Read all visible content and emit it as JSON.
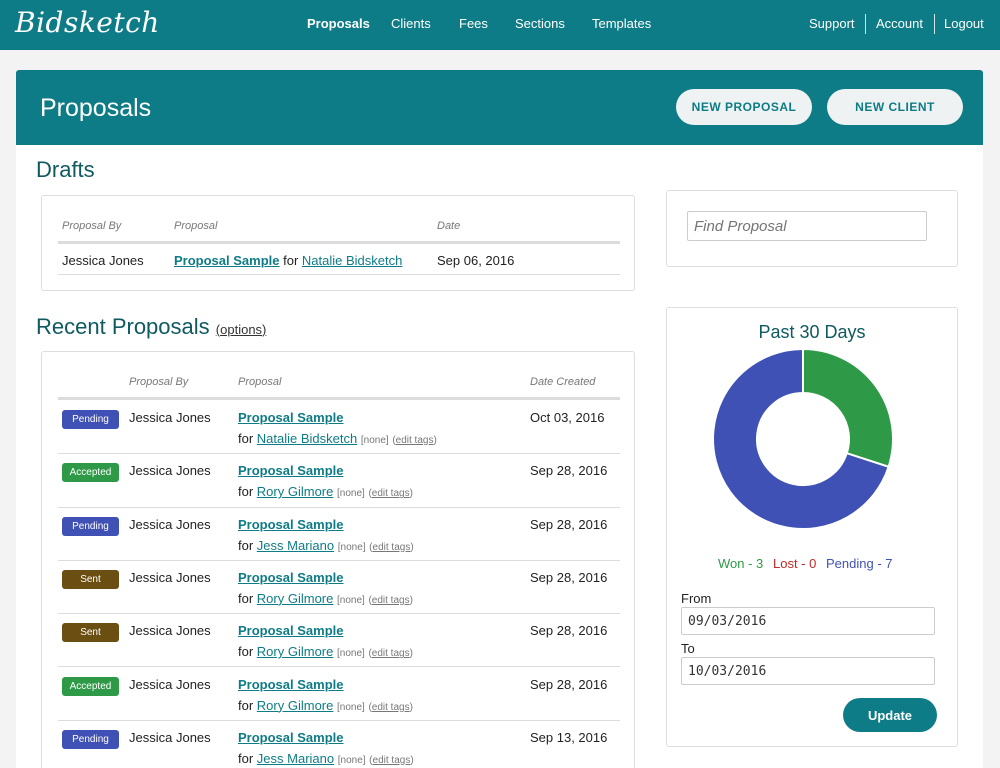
{
  "app": {
    "logo": "Bidsketch"
  },
  "nav": {
    "items": [
      {
        "label": "Proposals",
        "active": true
      },
      {
        "label": "Clients"
      },
      {
        "label": "Fees"
      },
      {
        "label": "Sections"
      },
      {
        "label": "Templates"
      }
    ],
    "right": [
      {
        "label": "Support"
      },
      {
        "label": "Account"
      },
      {
        "label": "Logout"
      }
    ]
  },
  "banner": {
    "title": "Proposals",
    "new_proposal": "NEW PROPOSAL",
    "new_client": "NEW CLIENT"
  },
  "drafts": {
    "title": "Drafts",
    "headers": {
      "by": "Proposal By",
      "proposal": "Proposal",
      "date": "Date"
    },
    "rows": [
      {
        "by": "Jessica Jones",
        "proposal": "Proposal Sample",
        "for_text": "for",
        "client": "Natalie Bidsketch",
        "date": "Sep 06, 2016"
      }
    ]
  },
  "recent": {
    "title": "Recent Proposals",
    "options": "options",
    "headers": {
      "by": "Proposal By",
      "proposal": "Proposal",
      "date": "Date Created"
    },
    "rows": [
      {
        "status": "Pending",
        "by": "Jessica Jones",
        "proposal": "Proposal Sample",
        "for_text": "for",
        "client": "Natalie Bidsketch",
        "tags": "[none]",
        "edit_tags": "edit tags",
        "date": "Oct 03, 2016"
      },
      {
        "status": "Accepted",
        "by": "Jessica Jones",
        "proposal": "Proposal Sample",
        "for_text": "for",
        "client": "Rory Gilmore",
        "tags": "[none]",
        "edit_tags": "edit tags",
        "date": "Sep 28, 2016"
      },
      {
        "status": "Pending",
        "by": "Jessica Jones",
        "proposal": "Proposal Sample",
        "for_text": "for",
        "client": "Jess Mariano",
        "tags": "[none]",
        "edit_tags": "edit tags",
        "date": "Sep 28, 2016"
      },
      {
        "status": "Sent",
        "by": "Jessica Jones",
        "proposal": "Proposal Sample",
        "for_text": "for",
        "client": "Rory Gilmore",
        "tags": "[none]",
        "edit_tags": "edit tags",
        "date": "Sep 28, 2016"
      },
      {
        "status": "Sent",
        "by": "Jessica Jones",
        "proposal": "Proposal Sample",
        "for_text": "for",
        "client": "Rory Gilmore",
        "tags": "[none]",
        "edit_tags": "edit tags",
        "date": "Sep 28, 2016"
      },
      {
        "status": "Accepted",
        "by": "Jessica Jones",
        "proposal": "Proposal Sample",
        "for_text": "for",
        "client": "Rory Gilmore",
        "tags": "[none]",
        "edit_tags": "edit tags",
        "date": "Sep 28, 2016"
      },
      {
        "status": "Pending",
        "by": "Jessica Jones",
        "proposal": "Proposal Sample",
        "for_text": "for",
        "client": "Jess Mariano",
        "tags": "[none]",
        "edit_tags": "edit tags",
        "date": "Sep 13, 2016"
      }
    ]
  },
  "status_colors": {
    "Pending": "#3f51b5",
    "Accepted": "#2e9a47",
    "Sent": "#6b4f12"
  },
  "search": {
    "placeholder": "Find Proposal"
  },
  "stats": {
    "title": "Past 30 Days",
    "won_label": "Won - 3",
    "lost_label": "Lost - 0",
    "pending_label": "Pending - 7",
    "from_label": "From",
    "from_value": "09/03/2016",
    "to_label": "To",
    "to_value": "10/03/2016",
    "update": "Update"
  },
  "chart_data": {
    "type": "pie",
    "title": "Past 30 Days",
    "slices": [
      {
        "label": "Won",
        "value": 3,
        "color": "#2e9a47"
      },
      {
        "label": "Lost",
        "value": 0,
        "color": "#c62828"
      },
      {
        "label": "Pending",
        "value": 7,
        "color": "#3f51b5"
      }
    ]
  }
}
